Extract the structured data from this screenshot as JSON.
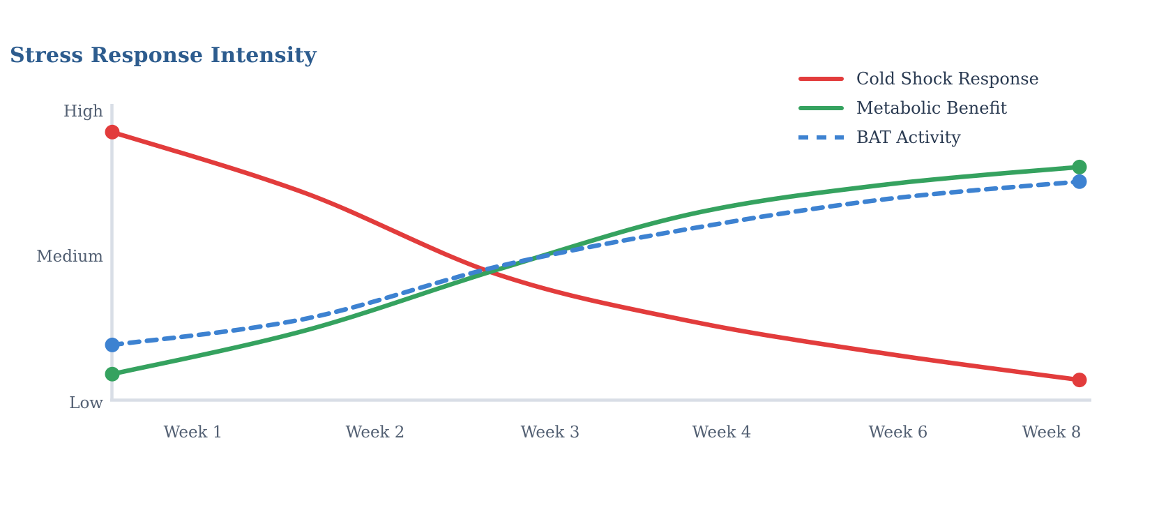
{
  "chart_data": {
    "type": "line",
    "title": "Stress Response Intensity",
    "categories": [
      "Week 1",
      "Week 2",
      "Week 3",
      "Week 4",
      "Week 6",
      "Week 8"
    ],
    "y_tick_labels": [
      "High",
      "Medium",
      "Low"
    ],
    "y_tick_values": [
      100,
      50,
      0
    ],
    "value_range": [
      0,
      100
    ],
    "grid": "off",
    "legend_position": "top-right",
    "marker_style": "dots-at-first-and-last-point",
    "series": [
      {
        "name": "Cold Shock Response",
        "color": "#e23c3c",
        "dash": "solid",
        "values": [
          93,
          72,
          44,
          28,
          17,
          8
        ]
      },
      {
        "name": "Metabolic Benefit",
        "color": "#35a25f",
        "dash": "solid",
        "values": [
          10,
          25,
          46,
          65,
          75,
          81
        ]
      },
      {
        "name": "BAT Activity",
        "color": "#3d82d1",
        "dash": "dashed",
        "values": [
          20,
          29,
          47,
          60,
          70,
          76
        ]
      }
    ],
    "colors": {
      "title": "#2d5c8e",
      "legend_text": "#2a3a51",
      "tick_labels": "#525f72",
      "axis": "#d9dee6",
      "background": "#ffffff"
    }
  }
}
